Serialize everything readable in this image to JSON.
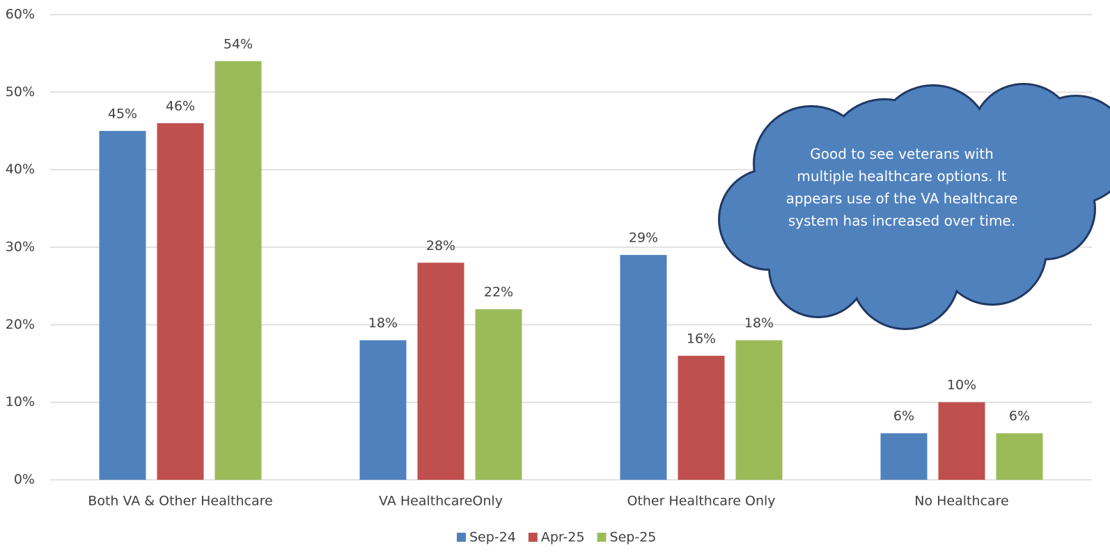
{
  "chart_data": {
    "type": "bar",
    "categories": [
      "Both VA & Other Healthcare",
      "VA HealthcareOnly",
      "Other Healthcare Only",
      "No Healthcare"
    ],
    "series": [
      {
        "name": "Sep-24",
        "color": "#4f81bd",
        "values": [
          45,
          18,
          29,
          6
        ],
        "value_labels": [
          "45%",
          "18%",
          "29%",
          "6%"
        ]
      },
      {
        "name": "Apr-25",
        "color": "#c0504d",
        "values": [
          46,
          28,
          16,
          10
        ],
        "value_labels": [
          "46%",
          "28%",
          "16%",
          "10%"
        ]
      },
      {
        "name": "Sep-25",
        "color": "#9bbb59",
        "values": [
          54,
          22,
          18,
          6
        ],
        "value_labels": [
          "54%",
          "22%",
          "18%",
          "6%"
        ]
      }
    ],
    "ylim": [
      0,
      60
    ],
    "yticks": [
      {
        "value": 0,
        "label": "0%"
      },
      {
        "value": 10,
        "label": "10%"
      },
      {
        "value": 20,
        "label": "20%"
      },
      {
        "value": 30,
        "label": "30%"
      },
      {
        "value": 40,
        "label": "40%"
      },
      {
        "value": 50,
        "label": "50%"
      },
      {
        "value": 60,
        "label": "60%"
      }
    ],
    "grid": true,
    "legend": "bottom",
    "annotation": "Good to see veterans with multiple healthcare options.  It appears use of the VA healthcare system has increased over time."
  }
}
